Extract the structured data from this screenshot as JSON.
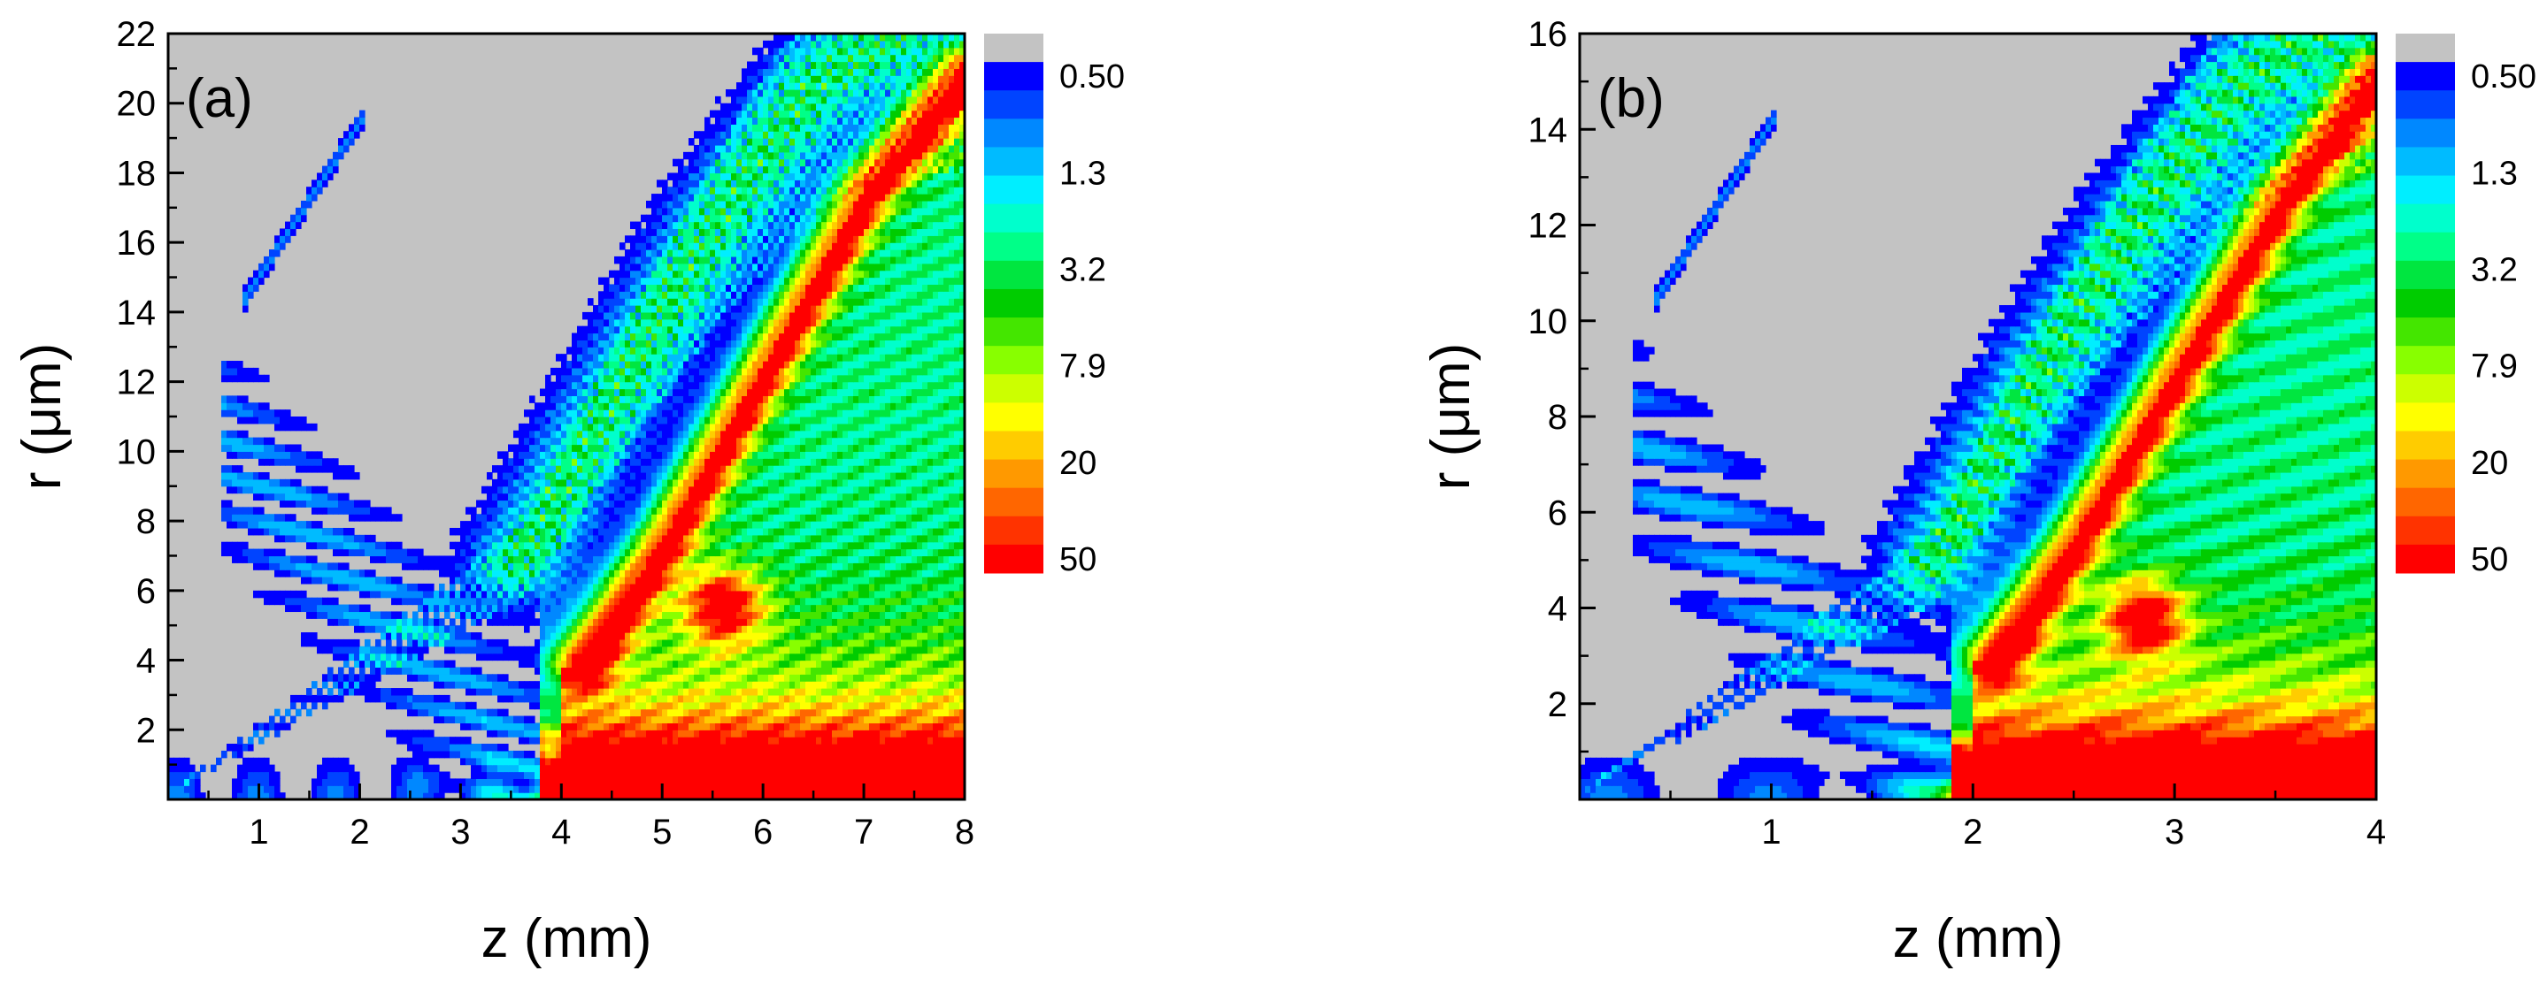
{
  "chart_data": [
    {
      "type": "heatmap",
      "panel_label": "(a)",
      "xlabel": "z (mm)",
      "ylabel_prefix": "r (",
      "ylabel_unit": "μm",
      "ylabel_suffix": ")",
      "xlim": [
        0.1,
        8.0
      ],
      "ylim": [
        0.0,
        22.0
      ],
      "x_ticks": [
        1,
        2,
        3,
        4,
        5,
        6,
        7,
        8
      ],
      "y_ticks": [
        2,
        4,
        6,
        8,
        10,
        12,
        14,
        16,
        18,
        20,
        22
      ],
      "grid": false,
      "features": {
        "beam_focus_z": 4.0,
        "main_ridge": [
          [
            4.2,
            4.0
          ],
          [
            5.0,
            7.5
          ],
          [
            6.0,
            12.5
          ],
          [
            7.0,
            17.5
          ],
          [
            8.0,
            21.0
          ]
        ],
        "outer_ridge": [
          [
            3.6,
            7.0
          ],
          [
            4.6,
            12.0
          ],
          [
            5.5,
            16.5
          ],
          [
            6.5,
            20.5
          ],
          [
            7.3,
            22.0
          ]
        ],
        "secondary_lobe": [
          5.6,
          5.6
        ],
        "near_axis_band_r": 1.8
      }
    },
    {
      "type": "heatmap",
      "panel_label": "(b)",
      "xlabel": "z (mm)",
      "ylabel_prefix": "r (",
      "ylabel_unit": "μm",
      "ylabel_suffix": ")",
      "xlim": [
        0.05,
        4.0
      ],
      "ylim": [
        0.0,
        16.0
      ],
      "x_ticks": [
        1,
        2,
        3,
        4
      ],
      "y_ticks": [
        2,
        4,
        6,
        8,
        10,
        12,
        14,
        16
      ],
      "grid": false,
      "features": {
        "beam_focus_z": 2.0,
        "main_ridge": [
          [
            2.1,
            3.0
          ],
          [
            2.5,
            5.5
          ],
          [
            3.0,
            9.0
          ],
          [
            3.5,
            12.5
          ],
          [
            4.0,
            15.2
          ]
        ],
        "outer_ridge": [
          [
            1.8,
            5.0
          ],
          [
            2.3,
            8.7
          ],
          [
            2.8,
            12.0
          ],
          [
            3.3,
            14.8
          ],
          [
            3.7,
            16.0
          ]
        ],
        "secondary_lobe": [
          2.85,
          3.8
        ],
        "near_axis_band_r": 1.3
      }
    }
  ],
  "colorbar": {
    "tick_labels": [
      "0.50",
      "1.3",
      "3.2",
      "7.9",
      "20",
      "50"
    ],
    "colors": [
      "#c3c3c3",
      "#0000ff",
      "#0044ff",
      "#0088ff",
      "#00bbff",
      "#00eeff",
      "#00ffcc",
      "#00ff88",
      "#00e640",
      "#00cc00",
      "#44e600",
      "#88ff00",
      "#ccff00",
      "#ffff00",
      "#ffcc00",
      "#ff9900",
      "#ff6600",
      "#ff3300",
      "#ff0000"
    ]
  }
}
